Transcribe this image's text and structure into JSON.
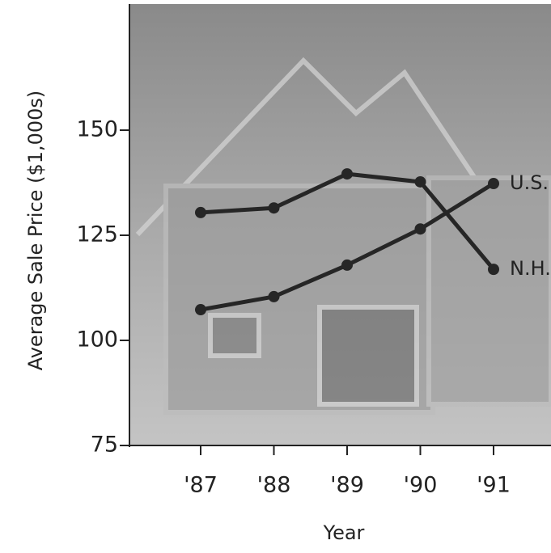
{
  "chart_data": {
    "type": "line",
    "x_label": "Year",
    "y_label": "Average Sale Price ($1,000s)",
    "categories": [
      "'87",
      "'88",
      "'89",
      "'90",
      "'91"
    ],
    "series": [
      {
        "name": "U.S.",
        "color": "#262626",
        "values": [
          107.3,
          110.4,
          117.9,
          126.5,
          137.3
        ]
      },
      {
        "name": "N.H.",
        "color": "#262626",
        "values": [
          130.4,
          131.5,
          139.6,
          137.7,
          116.9
        ]
      }
    ],
    "ylim": [
      75,
      180
    ],
    "yticks": [
      75,
      100,
      125,
      150
    ]
  }
}
